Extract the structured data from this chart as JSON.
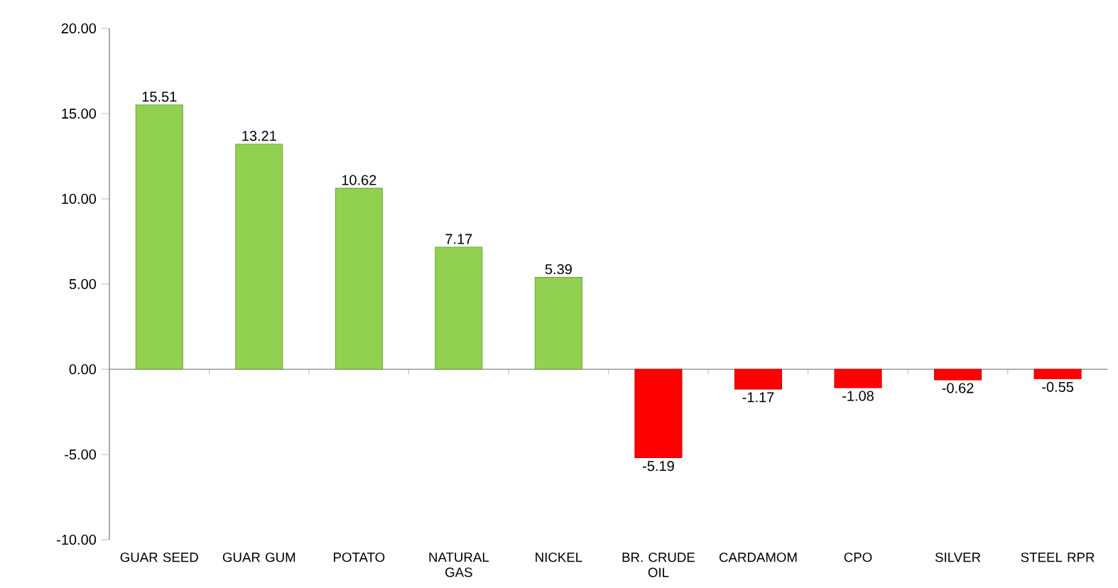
{
  "chart_data": {
    "type": "bar",
    "categories": [
      "GUAR SEED",
      "GUAR GUM",
      "POTATO",
      "NATURAL GAS",
      "NICKEL",
      "BR. CRUDE OIL",
      "CARDAMOM",
      "CPO",
      "SILVER",
      "STEEL RPR"
    ],
    "values": [
      15.51,
      13.21,
      10.62,
      7.17,
      5.39,
      -5.19,
      -1.17,
      -1.08,
      -0.62,
      -0.55
    ],
    "colors": [
      "#92d050",
      "#92d050",
      "#92d050",
      "#92d050",
      "#92d050",
      "#ff0000",
      "#ff0000",
      "#ff0000",
      "#ff0000",
      "#ff0000"
    ],
    "ylim": [
      -10,
      20
    ],
    "yticks": [
      {
        "value": -10,
        "label": "-10.00"
      },
      {
        "value": -5,
        "label": "-5.00"
      },
      {
        "value": 0,
        "label": "0.00"
      },
      {
        "value": 5,
        "label": "5.00"
      },
      {
        "value": 10,
        "label": "10.00"
      },
      {
        "value": 15,
        "label": "15.00"
      },
      {
        "value": 20,
        "label": "20.00"
      }
    ],
    "data_labels": true
  }
}
